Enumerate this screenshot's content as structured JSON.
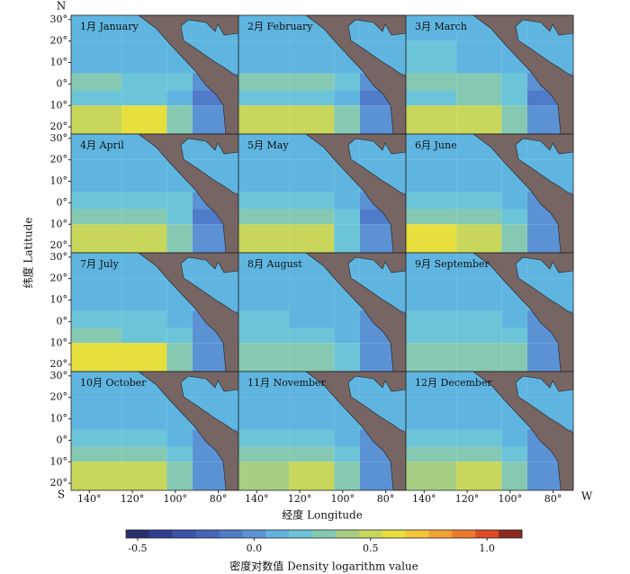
{
  "map": {
    "xlim": [
      -148.5,
      -70.6
    ],
    "ylim": [
      -23.3,
      32
    ],
    "xticks": [
      {
        "value": -140,
        "label": "140°"
      },
      {
        "value": -120,
        "label": "120°"
      },
      {
        "value": -100,
        "label": "100°"
      },
      {
        "value": -80,
        "label": "80°"
      }
    ],
    "yticks": [
      {
        "value": 30,
        "label": "30°"
      },
      {
        "value": 20,
        "label": "20°"
      },
      {
        "value": 10,
        "label": "10°"
      },
      {
        "value": 0,
        "label": "0°"
      },
      {
        "value": -10,
        "label": "10°"
      },
      {
        "value": -20,
        "label": "20°"
      }
    ],
    "xlabel": "经度 Longitude",
    "ylabel": "纬度 Latitude",
    "north": "N",
    "south": "S",
    "west": "W",
    "lat_edges": [
      32,
      20,
      5,
      -3,
      -10,
      -23.3
    ],
    "lon_edges": [
      -148.5,
      -125,
      -104,
      -92,
      -70.6
    ],
    "land_color": "#766563",
    "panels": [
      {
        "label": "1月 January",
        "values": [
          [
            0.1,
            0.1,
            0.1,
            0.1
          ],
          [
            0.1,
            0.1,
            0.1,
            0.1
          ],
          [
            0.3,
            0.2,
            0.2,
            0
          ],
          [
            0.2,
            0.2,
            0.1,
            -0.1
          ],
          [
            0.5,
            0.6,
            0.3,
            0
          ]
        ]
      },
      {
        "label": "2月 February",
        "values": [
          [
            0.1,
            0.1,
            0.1,
            0.1
          ],
          [
            0.1,
            0.1,
            0.1,
            0.1
          ],
          [
            0.3,
            0.3,
            0.2,
            0
          ],
          [
            0.2,
            0.2,
            0.1,
            -0.1
          ],
          [
            0.5,
            0.5,
            0.3,
            0
          ]
        ]
      },
      {
        "label": "3月 March",
        "values": [
          [
            0.1,
            0.1,
            0.1,
            0.1
          ],
          [
            0.2,
            0.1,
            0.1,
            0.1
          ],
          [
            0.3,
            0.3,
            0.2,
            0
          ],
          [
            0.2,
            0.3,
            0.2,
            -0.1
          ],
          [
            0.5,
            0.5,
            0.3,
            0
          ]
        ]
      },
      {
        "label": "4月 April",
        "values": [
          [
            0.1,
            0.1,
            0.1,
            0.1
          ],
          [
            0.1,
            0.1,
            0.1,
            0.1
          ],
          [
            0.2,
            0.2,
            0.2,
            0
          ],
          [
            0.3,
            0.3,
            0.2,
            -0.1
          ],
          [
            0.5,
            0.5,
            0.3,
            0
          ]
        ]
      },
      {
        "label": "5月 May",
        "values": [
          [
            0.1,
            0.1,
            0.1,
            0.1
          ],
          [
            0.1,
            0.1,
            0.1,
            0.1
          ],
          [
            0.2,
            0.2,
            0.1,
            0
          ],
          [
            0.3,
            0.3,
            0.2,
            -0.1
          ],
          [
            0.5,
            0.5,
            0.2,
            0
          ]
        ]
      },
      {
        "label": "6月 June",
        "values": [
          [
            0.1,
            0.1,
            0.1,
            0.1
          ],
          [
            0.1,
            0.1,
            0.1,
            0.1
          ],
          [
            0.2,
            0.2,
            0.1,
            0
          ],
          [
            0.3,
            0.3,
            0.2,
            0
          ],
          [
            0.6,
            0.5,
            0.3,
            0
          ]
        ]
      },
      {
        "label": "7月 July",
        "values": [
          [
            0.1,
            0.1,
            0.1,
            0.1
          ],
          [
            0.1,
            0.1,
            0.1,
            0.1
          ],
          [
            0.2,
            0.2,
            0.1,
            0
          ],
          [
            0.3,
            0.2,
            0.2,
            0
          ],
          [
            0.6,
            0.6,
            0.3,
            0
          ]
        ]
      },
      {
        "label": "8月 August",
        "values": [
          [
            0.1,
            0.1,
            0.1,
            0.1
          ],
          [
            0.1,
            0.1,
            0.1,
            0.1
          ],
          [
            0.2,
            0.1,
            0.1,
            0
          ],
          [
            0.2,
            0.2,
            0.1,
            0
          ],
          [
            0.3,
            0.3,
            0.2,
            0
          ]
        ]
      },
      {
        "label": "9月 September",
        "values": [
          [
            0.1,
            0.1,
            0.1,
            0.1
          ],
          [
            0.1,
            0.1,
            0.1,
            0.1
          ],
          [
            0.2,
            0.2,
            0.1,
            0
          ],
          [
            0.2,
            0.2,
            0.2,
            0
          ],
          [
            0.3,
            0.3,
            0.3,
            0
          ]
        ]
      },
      {
        "label": "10月 October",
        "values": [
          [
            0.1,
            0.1,
            0.1,
            0.1
          ],
          [
            0.1,
            0.1,
            0.1,
            0.1
          ],
          [
            0.2,
            0.2,
            0.1,
            0
          ],
          [
            0.3,
            0.3,
            0.2,
            0
          ],
          [
            0.5,
            0.5,
            0.3,
            0
          ]
        ]
      },
      {
        "label": "11月 November",
        "values": [
          [
            0.1,
            0.1,
            0.1,
            0.1
          ],
          [
            0.1,
            0.1,
            0.1,
            0.1
          ],
          [
            0.2,
            0.2,
            0.1,
            0
          ],
          [
            0.3,
            0.3,
            0.2,
            0
          ],
          [
            0.4,
            0.5,
            0.3,
            0
          ]
        ]
      },
      {
        "label": "12月 December",
        "values": [
          [
            0.1,
            0.1,
            0.1,
            0.1
          ],
          [
            0.1,
            0.1,
            0.1,
            0.1
          ],
          [
            0.2,
            0.2,
            0.1,
            0
          ],
          [
            0.3,
            0.3,
            0.2,
            0
          ],
          [
            0.4,
            0.5,
            0.3,
            0
          ]
        ]
      }
    ],
    "colorbar": {
      "label": "密度对数值 Density logarithm value",
      "clim": [
        -0.55,
        1.15
      ],
      "ticks": [
        -0.5,
        {
          "value": 0,
          "label": "0.0"
        },
        0.5,
        {
          "value": 1,
          "label": "1.0"
        }
      ],
      "colors": [
        "#2b2e6e",
        "#2f3f8f",
        "#3a52a8",
        "#4565bb",
        "#4f7bc9",
        "#5a92d4",
        "#5fb5e0",
        "#6cc4d8",
        "#86c9b2",
        "#a6cf83",
        "#c8d75c",
        "#e6df3e",
        "#f2c43a",
        "#f2a134",
        "#ec7a2e",
        "#dc4a26",
        "#8a2a1e"
      ]
    }
  }
}
